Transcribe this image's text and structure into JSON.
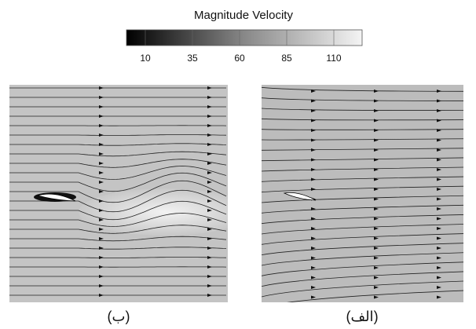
{
  "colorbar": {
    "title": "Magnitude Velocity",
    "range": [
      0,
      125
    ],
    "ticks": [
      10,
      35,
      60,
      85,
      110
    ]
  },
  "panels": [
    {
      "label": "(ب)"
    },
    {
      "label": "(الف)"
    }
  ]
}
